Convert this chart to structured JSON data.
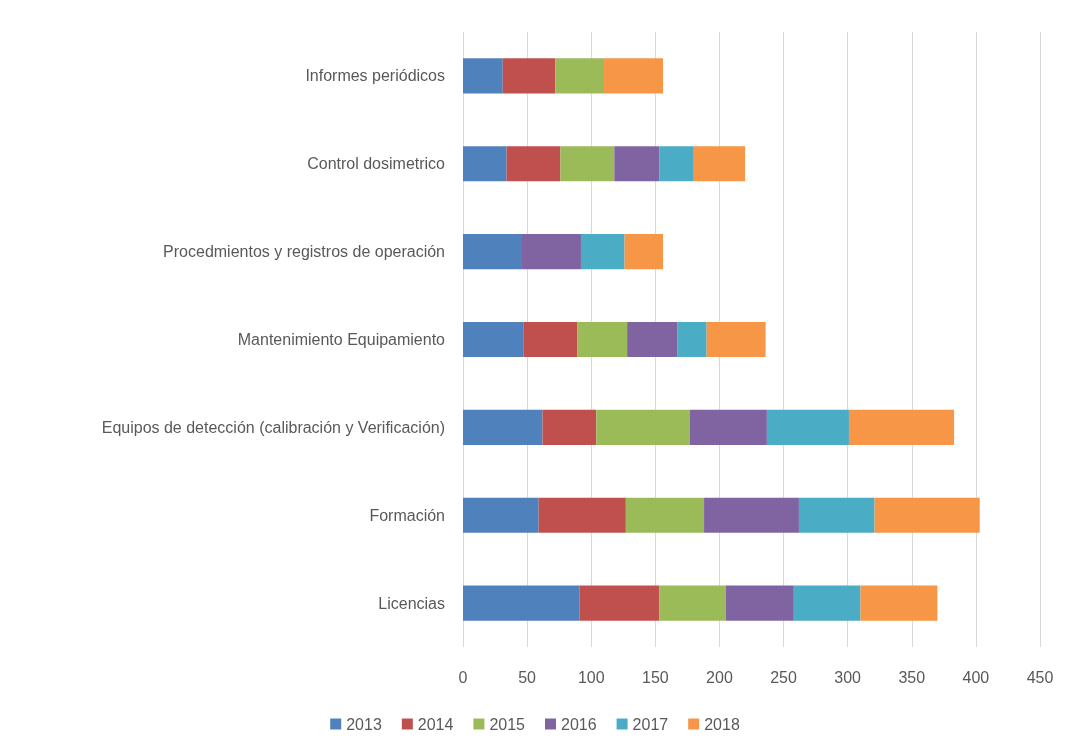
{
  "chart_data": {
    "type": "bar",
    "orientation": "horizontal",
    "stacked": true,
    "categories": [
      "Informes periódicos",
      "Control dosimetrico",
      "Procedmientos y registros de operación",
      "Mantenimiento Equipamiento",
      "Equipos de detección (calibración y Verificación)",
      "Formación",
      "Licencias"
    ],
    "series": [
      {
        "name": "2013",
        "color": "#4f81bd",
        "values": [
          31,
          34,
          46,
          47,
          62,
          59,
          91
        ]
      },
      {
        "name": "2014",
        "color": "#c0504d",
        "values": [
          41,
          42,
          null,
          42,
          42,
          68,
          62
        ]
      },
      {
        "name": "2015",
        "color": "#9bbb59",
        "values": [
          38,
          42,
          null,
          39,
          73,
          61,
          52
        ]
      },
      {
        "name": "2016",
        "color": "#8064a2",
        "values": [
          null,
          35,
          46,
          39,
          60,
          74,
          53
        ]
      },
      {
        "name": "2017",
        "color": "#4bacc6",
        "values": [
          null,
          27,
          34,
          23,
          64,
          59,
          52
        ]
      },
      {
        "name": "2018",
        "color": "#f79646",
        "values": [
          46,
          40,
          30,
          46,
          82,
          82,
          60
        ]
      }
    ],
    "xlim": [
      0,
      450
    ],
    "xticks": [
      0,
      50,
      100,
      150,
      200,
      250,
      300,
      350,
      400,
      450
    ],
    "grid": "x",
    "legend": "bottom"
  }
}
